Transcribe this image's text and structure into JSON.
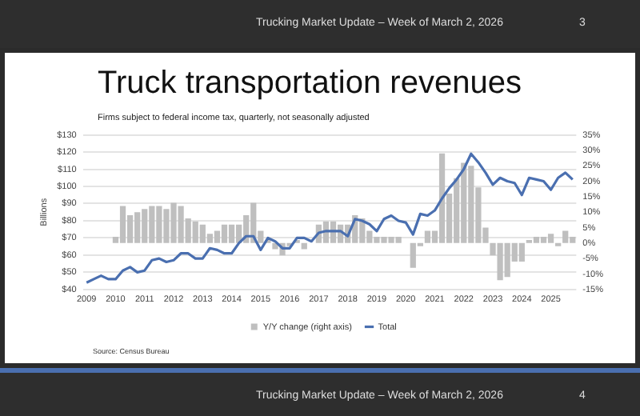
{
  "chart_data": {
    "type": "bar",
    "title": "Truck transportation revenues",
    "subtitle": "Firms subject to federal income tax, quarterly, not seasonally adjusted",
    "ylabel": "Billions",
    "annotations": [
      "Trucking Market Update – Week of March 2, 2026",
      "3",
      "Source: Census Bureau",
      "Trucking Market Update – Week of March 2, 2026",
      "4"
    ],
    "categories": [
      "2009",
      null,
      null,
      null,
      "2010",
      null,
      null,
      null,
      "2011",
      null,
      null,
      null,
      "2012",
      null,
      null,
      null,
      "2013",
      null,
      null,
      null,
      "2014",
      null,
      null,
      null,
      "2015",
      null,
      null,
      null,
      "2016",
      null,
      null,
      null,
      "2017",
      null,
      null,
      null,
      "2018",
      null,
      null,
      null,
      "2019",
      null,
      null,
      null,
      "2020",
      null,
      null,
      null,
      "2021",
      null,
      null,
      null,
      "2022",
      null,
      null,
      null,
      "2023",
      null,
      null,
      null,
      "2024",
      null,
      null,
      null,
      "2025",
      null,
      null,
      null
    ],
    "series": [
      {
        "name": "Y/Y change (right axis)",
        "axis": "y2",
        "color": "#bfbfbf",
        "values": [
          null,
          null,
          null,
          null,
          2,
          12,
          9,
          10,
          11,
          12,
          12,
          11,
          13,
          12,
          8,
          7,
          6,
          3,
          4,
          6,
          6,
          6,
          9,
          13,
          4,
          1,
          -2,
          -4,
          -1,
          1,
          -2,
          null,
          6,
          7,
          7,
          6,
          6,
          9,
          8,
          4,
          2,
          2,
          2,
          2,
          0,
          -8,
          -1,
          4,
          4,
          29,
          16,
          21,
          26,
          25,
          18,
          5,
          -4,
          -12,
          -11,
          -6,
          -6,
          1,
          2,
          2,
          3,
          -1,
          4,
          2
        ]
      },
      {
        "name": "Total",
        "type": "line",
        "color": "#4a6fb0",
        "values": [
          44,
          46,
          48,
          46,
          46,
          51,
          53,
          50,
          51,
          57,
          58,
          56,
          57,
          61,
          61,
          58,
          58,
          64,
          63,
          61,
          61,
          67,
          71,
          71,
          63,
          70,
          68,
          64,
          64,
          70,
          70,
          68,
          73,
          74,
          74,
          74,
          71,
          81,
          80,
          78,
          74,
          81,
          83,
          80,
          79,
          72,
          84,
          83,
          86,
          93,
          99,
          104,
          110,
          119,
          114,
          108,
          101,
          105,
          103,
          102,
          95,
          105,
          104,
          103,
          98,
          105,
          108,
          104
        ]
      }
    ],
    "ylim": [
      40,
      130
    ],
    "yticks": [
      {
        "value": 40,
        "label": "$40"
      },
      {
        "value": 50,
        "label": "$50"
      },
      {
        "value": 60,
        "label": "$60"
      },
      {
        "value": 70,
        "label": "$70"
      },
      {
        "value": 80,
        "label": "$80"
      },
      {
        "value": 90,
        "label": "$90"
      },
      {
        "value": 100,
        "label": "$100"
      },
      {
        "value": 110,
        "label": "$110"
      },
      {
        "value": 120,
        "label": "$120"
      },
      {
        "value": 130,
        "label": "$130"
      }
    ],
    "y2lim": [
      -15,
      35
    ],
    "y2ticks": [
      {
        "value": -15,
        "label": "-15%"
      },
      {
        "value": -10,
        "label": "-10%"
      },
      {
        "value": -5,
        "label": "-5%"
      },
      {
        "value": 0,
        "label": "0%"
      },
      {
        "value": 5,
        "label": "5%"
      },
      {
        "value": 10,
        "label": "10%"
      },
      {
        "value": 15,
        "label": "15%"
      },
      {
        "value": 20,
        "label": "20%"
      },
      {
        "value": 25,
        "label": "25%"
      },
      {
        "value": 30,
        "label": "30%"
      },
      {
        "value": 35,
        "label": "35%"
      }
    ],
    "grid": "y",
    "legend": "bottom",
    "marker": "none"
  }
}
